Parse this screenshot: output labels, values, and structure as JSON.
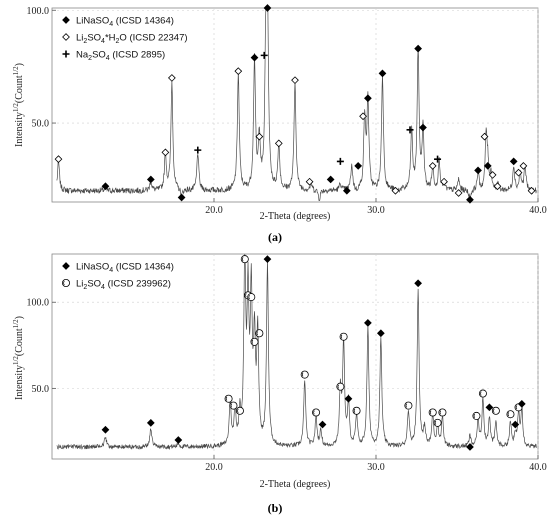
{
  "colors": {
    "line": "#4a4a4a",
    "marker": "#000000",
    "frame": "#888888"
  },
  "chart_data": [
    {
      "type": "line",
      "panel_label": "(a)",
      "xlabel": "2-Theta (degrees)",
      "ylabel": "Intensity^1/2(Count^1/2)",
      "xlim": [
        10,
        40
      ],
      "ylim": [
        15,
        101
      ],
      "xticks": [
        {
          "v": 20,
          "label": "20.0"
        },
        {
          "v": 30,
          "label": "30.0"
        },
        {
          "v": 40,
          "label": "40.0"
        }
      ],
      "yticks": [
        {
          "v": 50,
          "label": "50.0"
        },
        {
          "v": 100,
          "label": "100.0"
        }
      ],
      "baseline": 20,
      "peaks": [
        [
          10.4,
          33
        ],
        [
          13.3,
          21
        ],
        [
          16.1,
          24
        ],
        [
          17.0,
          36
        ],
        [
          17.4,
          68
        ],
        [
          18.0,
          17
        ],
        [
          19.0,
          37
        ],
        [
          21.5,
          72
        ],
        [
          22.5,
          78
        ],
        [
          22.8,
          43
        ],
        [
          23.2,
          79
        ],
        [
          23.3,
          100
        ],
        [
          24.0,
          40
        ],
        [
          25.0,
          68
        ],
        [
          26.0,
          23
        ],
        [
          26.5,
          16
        ],
        [
          27.8,
          23
        ],
        [
          28.5,
          31
        ],
        [
          28.8,
          19
        ],
        [
          29.3,
          52
        ],
        [
          29.5,
          60
        ],
        [
          30.4,
          71
        ],
        [
          31.3,
          19
        ],
        [
          32.2,
          46
        ],
        [
          32.6,
          82
        ],
        [
          32.9,
          47
        ],
        [
          33.5,
          30
        ],
        [
          33.9,
          33
        ],
        [
          34.2,
          23
        ],
        [
          35.1,
          25
        ],
        [
          35.8,
          16
        ],
        [
          36.3,
          28
        ],
        [
          36.8,
          44
        ],
        [
          36.9,
          30
        ],
        [
          37.1,
          27
        ],
        [
          37.5,
          23
        ],
        [
          38.5,
          31
        ],
        [
          38.9,
          28
        ],
        [
          39.2,
          31
        ],
        [
          39.6,
          19
        ]
      ],
      "legend": [
        {
          "marker": "diamond-filled",
          "parts": [
            "LiNaSO",
            "4",
            " (ICSD 14364)"
          ]
        },
        {
          "marker": "diamond-open",
          "parts": [
            "Li",
            "2",
            "SO",
            "4",
            "*H",
            "2",
            "O (ICSD 22347)"
          ]
        },
        {
          "marker": "plus",
          "parts": [
            "Na",
            "2",
            "SO",
            "4",
            " (ICSD 2895)"
          ]
        }
      ],
      "markers": [
        {
          "x": 10.4,
          "y": 34,
          "type": "diamond-open"
        },
        {
          "x": 13.3,
          "y": 22,
          "type": "diamond-filled"
        },
        {
          "x": 16.1,
          "y": 25,
          "type": "diamond-filled"
        },
        {
          "x": 17.0,
          "y": 37,
          "type": "diamond-open"
        },
        {
          "x": 17.4,
          "y": 70,
          "type": "diamond-open"
        },
        {
          "x": 18.0,
          "y": 17,
          "type": "diamond-filled"
        },
        {
          "x": 19.0,
          "y": 38,
          "type": "plus"
        },
        {
          "x": 21.5,
          "y": 73,
          "type": "diamond-open"
        },
        {
          "x": 22.5,
          "y": 79,
          "type": "diamond-filled"
        },
        {
          "x": 22.8,
          "y": 44,
          "type": "diamond-open"
        },
        {
          "x": 23.1,
          "y": 80,
          "type": "plus"
        },
        {
          "x": 23.3,
          "y": 101,
          "type": "diamond-filled"
        },
        {
          "x": 24.0,
          "y": 41,
          "type": "diamond-open"
        },
        {
          "x": 25.0,
          "y": 69,
          "type": "diamond-open"
        },
        {
          "x": 25.9,
          "y": 24,
          "type": "diamond-open"
        },
        {
          "x": 27.2,
          "y": 25,
          "type": "diamond-filled"
        },
        {
          "x": 27.8,
          "y": 33,
          "type": "plus"
        },
        {
          "x": 28.2,
          "y": 20,
          "type": "diamond-filled"
        },
        {
          "x": 28.9,
          "y": 31,
          "type": "diamond-filled"
        },
        {
          "x": 29.2,
          "y": 53,
          "type": "diamond-open"
        },
        {
          "x": 29.5,
          "y": 61,
          "type": "diamond-filled"
        },
        {
          "x": 30.4,
          "y": 72,
          "type": "diamond-filled"
        },
        {
          "x": 31.2,
          "y": 20,
          "type": "diamond-open"
        },
        {
          "x": 32.1,
          "y": 47,
          "type": "plus"
        },
        {
          "x": 32.6,
          "y": 83,
          "type": "diamond-filled"
        },
        {
          "x": 32.9,
          "y": 48,
          "type": "diamond-filled"
        },
        {
          "x": 33.5,
          "y": 31,
          "type": "diamond-open"
        },
        {
          "x": 33.8,
          "y": 34,
          "type": "plus"
        },
        {
          "x": 34.2,
          "y": 24,
          "type": "diamond-open"
        },
        {
          "x": 35.1,
          "y": 19,
          "type": "diamond-open"
        },
        {
          "x": 35.8,
          "y": 16,
          "type": "diamond-filled"
        },
        {
          "x": 36.3,
          "y": 29,
          "type": "diamond-filled"
        },
        {
          "x": 36.7,
          "y": 44,
          "type": "diamond-open"
        },
        {
          "x": 36.9,
          "y": 31,
          "type": "diamond-filled"
        },
        {
          "x": 37.2,
          "y": 27,
          "type": "diamond-open"
        },
        {
          "x": 37.5,
          "y": 22,
          "type": "diamond-open"
        },
        {
          "x": 38.5,
          "y": 33,
          "type": "diamond-filled"
        },
        {
          "x": 38.8,
          "y": 28,
          "type": "diamond-open"
        },
        {
          "x": 39.1,
          "y": 31,
          "type": "diamond-open"
        },
        {
          "x": 39.6,
          "y": 20,
          "type": "diamond-open"
        }
      ]
    },
    {
      "type": "line",
      "panel_label": "(b)",
      "xlabel": "2-Theta (degrees)",
      "ylabel": "Intensity^1/2(Count^1/2)",
      "xlim": [
        10,
        40
      ],
      "ylim": [
        9,
        128
      ],
      "xticks": [
        {
          "v": 20,
          "label": "20.0"
        },
        {
          "v": 30,
          "label": "30.0"
        },
        {
          "v": 40,
          "label": "40.0"
        }
      ],
      "yticks": [
        {
          "v": 50,
          "label": "50.0"
        },
        {
          "v": 100,
          "label": "100.0"
        }
      ],
      "baseline": 16,
      "peaks": [
        [
          13.3,
          22
        ],
        [
          16.1,
          27
        ],
        [
          17.8,
          18
        ],
        [
          21.0,
          42
        ],
        [
          21.3,
          37
        ],
        [
          21.6,
          34
        ],
        [
          21.9,
          122
        ],
        [
          22.1,
          98
        ],
        [
          22.3,
          101
        ],
        [
          22.5,
          74
        ],
        [
          22.7,
          79
        ],
        [
          23.3,
          122
        ],
        [
          25.6,
          55
        ],
        [
          26.3,
          33
        ],
        [
          26.6,
          25
        ],
        [
          27.8,
          48
        ],
        [
          28.0,
          77
        ],
        [
          28.3,
          41
        ],
        [
          28.8,
          34
        ],
        [
          29.5,
          85
        ],
        [
          30.3,
          79
        ],
        [
          32.0,
          37
        ],
        [
          32.6,
          107
        ],
        [
          33.0,
          27
        ],
        [
          33.5,
          34
        ],
        [
          33.8,
          28
        ],
        [
          34.1,
          33
        ],
        [
          35.8,
          22
        ],
        [
          36.3,
          31
        ],
        [
          36.6,
          44
        ],
        [
          37.0,
          33
        ],
        [
          37.4,
          30
        ],
        [
          38.3,
          30
        ],
        [
          38.6,
          22
        ],
        [
          38.8,
          35
        ],
        [
          39.0,
          38
        ]
      ],
      "legend": [
        {
          "marker": "diamond-filled",
          "parts": [
            "LiNaSO",
            "4",
            " (ICSD 14364)"
          ]
        },
        {
          "marker": "circle-open",
          "parts": [
            "Li",
            "2",
            "SO",
            "4",
            " (ICSD 239962)"
          ]
        }
      ],
      "markers": [
        {
          "x": 13.3,
          "y": 26,
          "type": "diamond-filled"
        },
        {
          "x": 16.1,
          "y": 30,
          "type": "diamond-filled"
        },
        {
          "x": 17.8,
          "y": 20,
          "type": "diamond-filled"
        },
        {
          "x": 20.9,
          "y": 44,
          "type": "circle-open"
        },
        {
          "x": 21.2,
          "y": 40,
          "type": "circle-open"
        },
        {
          "x": 21.6,
          "y": 37,
          "type": "circle-open"
        },
        {
          "x": 21.9,
          "y": 125,
          "type": "circle-open"
        },
        {
          "x": 22.1,
          "y": 104,
          "type": "circle-open"
        },
        {
          "x": 22.3,
          "y": 103,
          "type": "circle-open"
        },
        {
          "x": 22.5,
          "y": 77,
          "type": "circle-open"
        },
        {
          "x": 22.8,
          "y": 82,
          "type": "circle-open"
        },
        {
          "x": 23.3,
          "y": 125,
          "type": "diamond-filled"
        },
        {
          "x": 25.6,
          "y": 58,
          "type": "circle-open"
        },
        {
          "x": 26.3,
          "y": 36,
          "type": "circle-open"
        },
        {
          "x": 26.7,
          "y": 29,
          "type": "diamond-filled"
        },
        {
          "x": 27.8,
          "y": 51,
          "type": "circle-open"
        },
        {
          "x": 28.0,
          "y": 80,
          "type": "circle-open"
        },
        {
          "x": 28.3,
          "y": 44,
          "type": "diamond-filled"
        },
        {
          "x": 28.8,
          "y": 37,
          "type": "circle-open"
        },
        {
          "x": 29.5,
          "y": 88,
          "type": "diamond-filled"
        },
        {
          "x": 30.3,
          "y": 82,
          "type": "diamond-filled"
        },
        {
          "x": 32.0,
          "y": 40,
          "type": "circle-open"
        },
        {
          "x": 32.6,
          "y": 111,
          "type": "diamond-filled"
        },
        {
          "x": 33.5,
          "y": 36,
          "type": "circle-open"
        },
        {
          "x": 33.8,
          "y": 30,
          "type": "circle-open"
        },
        {
          "x": 34.1,
          "y": 36,
          "type": "circle-open"
        },
        {
          "x": 35.8,
          "y": 16,
          "type": "diamond-filled"
        },
        {
          "x": 36.2,
          "y": 34,
          "type": "circle-open"
        },
        {
          "x": 36.6,
          "y": 47,
          "type": "circle-open"
        },
        {
          "x": 37.0,
          "y": 39,
          "type": "diamond-filled"
        },
        {
          "x": 37.4,
          "y": 37,
          "type": "circle-open"
        },
        {
          "x": 38.3,
          "y": 35,
          "type": "circle-open"
        },
        {
          "x": 38.6,
          "y": 29,
          "type": "diamond-filled"
        },
        {
          "x": 38.8,
          "y": 39,
          "type": "circle-open"
        },
        {
          "x": 39.0,
          "y": 41,
          "type": "diamond-filled"
        }
      ]
    }
  ]
}
